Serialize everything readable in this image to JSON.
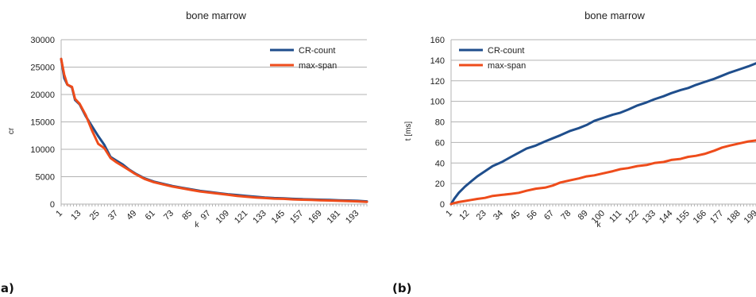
{
  "chart_data": [
    {
      "type": "line",
      "panel_label": "(a)",
      "title": "bone marrow",
      "xlabel": "k",
      "ylabel": "cr",
      "ylim": [
        0,
        30000
      ],
      "yticks": [
        0,
        5000,
        10000,
        15000,
        20000,
        25000,
        30000
      ],
      "x_tick_labels": [
        "1",
        "13",
        "25",
        "37",
        "49",
        "61",
        "73",
        "85",
        "97",
        "109",
        "121",
        "133",
        "145",
        "157",
        "169",
        "181",
        "193"
      ],
      "grid": true,
      "legend_position": "top-right",
      "series": [
        {
          "name": "CR-count",
          "color": "#1f4e8c",
          "x": [
            1,
            3,
            5,
            8,
            10,
            13,
            17,
            21,
            25,
            29,
            33,
            37,
            41,
            45,
            49,
            55,
            61,
            67,
            73,
            79,
            85,
            91,
            97,
            103,
            109,
            115,
            121,
            127,
            133,
            139,
            145,
            151,
            157,
            163,
            169,
            175,
            181,
            187,
            193,
            199
          ],
          "y": [
            26500,
            23000,
            21800,
            21300,
            19000,
            18200,
            16000,
            14200,
            12400,
            10800,
            8600,
            7900,
            7200,
            6300,
            5600,
            4700,
            4100,
            3700,
            3300,
            3000,
            2700,
            2400,
            2200,
            2000,
            1800,
            1650,
            1500,
            1350,
            1200,
            1100,
            1050,
            950,
            900,
            850,
            800,
            750,
            700,
            650,
            600,
            500
          ]
        },
        {
          "name": "max-span",
          "color": "#ee4c1b",
          "x": [
            1,
            3,
            5,
            8,
            10,
            13,
            17,
            21,
            25,
            29,
            33,
            37,
            41,
            45,
            49,
            55,
            61,
            67,
            73,
            79,
            85,
            91,
            97,
            103,
            109,
            115,
            121,
            127,
            133,
            139,
            145,
            151,
            157,
            163,
            169,
            175,
            181,
            187,
            193,
            199
          ],
          "y": [
            26500,
            23600,
            21800,
            21400,
            19200,
            18300,
            16200,
            13400,
            11000,
            10200,
            8400,
            7600,
            6900,
            6200,
            5500,
            4600,
            4000,
            3600,
            3200,
            2900,
            2600,
            2300,
            2100,
            1900,
            1700,
            1500,
            1350,
            1200,
            1100,
            1000,
            950,
            850,
            800,
            750,
            700,
            650,
            600,
            550,
            500,
            400
          ]
        }
      ]
    },
    {
      "type": "line",
      "panel_label": "(b)",
      "title": "bone marrow",
      "xlabel": "k",
      "ylabel": "t [ms]",
      "ylim": [
        0,
        160
      ],
      "yticks": [
        0,
        20,
        40,
        60,
        80,
        100,
        120,
        140,
        160
      ],
      "x_tick_labels": [
        "1",
        "12",
        "23",
        "34",
        "45",
        "56",
        "67",
        "78",
        "89",
        "100",
        "111",
        "122",
        "133",
        "144",
        "155",
        "166",
        "177",
        "188",
        "199"
      ],
      "grid": true,
      "legend_position": "top-left",
      "series": [
        {
          "name": "CR-count",
          "color": "#1f4e8c",
          "x": [
            1,
            3,
            6,
            10,
            14,
            18,
            23,
            28,
            34,
            40,
            45,
            50,
            56,
            62,
            67,
            72,
            78,
            84,
            89,
            94,
            100,
            106,
            111,
            116,
            122,
            128,
            133,
            139,
            144,
            150,
            155,
            160,
            166,
            172,
            177,
            182,
            188,
            194,
            199
          ],
          "y": [
            0,
            5,
            11,
            17,
            22,
            27,
            32,
            37,
            41,
            46,
            50,
            54,
            57,
            61,
            64,
            67,
            71,
            74,
            77,
            81,
            84,
            87,
            89,
            92,
            96,
            99,
            102,
            105,
            108,
            111,
            113,
            116,
            119,
            122,
            125,
            128,
            131,
            134,
            137
          ]
        },
        {
          "name": "max-span",
          "color": "#ee4c1b",
          "x": [
            1,
            3,
            6,
            10,
            14,
            18,
            23,
            28,
            34,
            40,
            45,
            50,
            56,
            62,
            67,
            72,
            78,
            84,
            89,
            94,
            100,
            106,
            111,
            116,
            122,
            128,
            133,
            139,
            144,
            150,
            155,
            160,
            166,
            172,
            177,
            182,
            188,
            194,
            199
          ],
          "y": [
            0,
            1,
            2,
            3,
            4,
            5,
            6,
            8,
            9,
            10,
            11,
            13,
            15,
            16,
            18,
            21,
            23,
            25,
            27,
            28,
            30,
            32,
            34,
            35,
            37,
            38,
            40,
            41,
            43,
            44,
            46,
            47,
            49,
            52,
            55,
            57,
            59,
            61,
            62
          ]
        }
      ]
    }
  ]
}
